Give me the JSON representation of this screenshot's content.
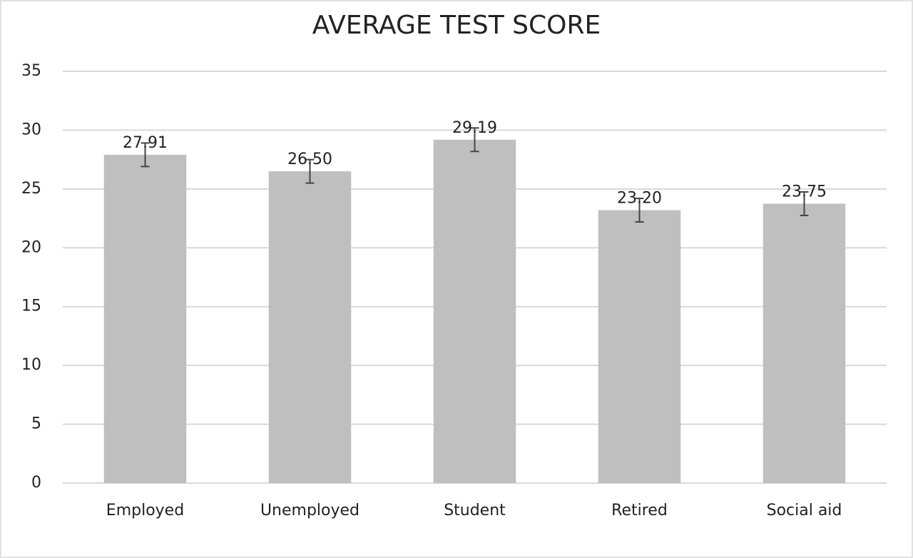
{
  "chart_data": {
    "type": "bar",
    "title": "AVERAGE TEST SCORE",
    "categories": [
      "Employed",
      "Unemployed",
      "Student",
      "Retired",
      "Social aid"
    ],
    "values": [
      27.91,
      26.5,
      29.19,
      23.2,
      23.75
    ],
    "value_labels": [
      "27.91",
      "26.50",
      "29.19",
      "23.20",
      "23.75"
    ],
    "errors": [
      1,
      1,
      1,
      1,
      1
    ],
    "color": "#bfbfbf",
    "ylim": [
      0,
      35
    ],
    "yticks": [
      0,
      5,
      10,
      15,
      20,
      25,
      30,
      35
    ],
    "grid": true
  }
}
